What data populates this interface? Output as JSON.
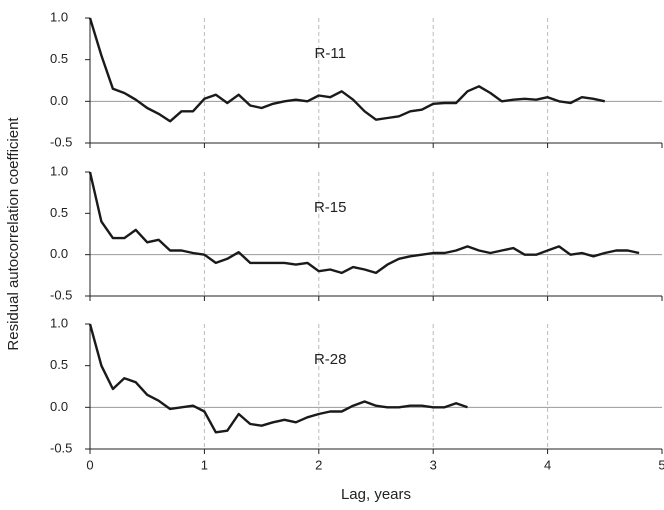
{
  "chart_data": [
    {
      "type": "line",
      "annotation": "R-11",
      "color": "#1a1a1a",
      "x": [
        0,
        0.1,
        0.2,
        0.3,
        0.4,
        0.5,
        0.6,
        0.7,
        0.8,
        0.9,
        1.0,
        1.1,
        1.2,
        1.3,
        1.4,
        1.5,
        1.6,
        1.7,
        1.8,
        1.9,
        2.0,
        2.1,
        2.2,
        2.3,
        2.4,
        2.5,
        2.6,
        2.7,
        2.8,
        2.9,
        3.0,
        3.1,
        3.2,
        3.3,
        3.4,
        3.5,
        3.6,
        3.7,
        3.8,
        3.9,
        4.0,
        4.1,
        4.2,
        4.3,
        4.4,
        4.5
      ],
      "values": [
        1.0,
        0.55,
        0.15,
        0.1,
        0.02,
        -0.08,
        -0.15,
        -0.24,
        -0.12,
        -0.12,
        0.03,
        0.08,
        -0.02,
        0.08,
        -0.05,
        -0.08,
        -0.03,
        0.0,
        0.02,
        0.0,
        0.07,
        0.05,
        0.12,
        0.02,
        -0.12,
        -0.22,
        -0.2,
        -0.18,
        -0.12,
        -0.1,
        -0.03,
        -0.02,
        -0.02,
        0.12,
        0.18,
        0.1,
        0.0,
        0.02,
        0.03,
        0.02,
        0.05,
        0.0,
        -0.02,
        0.05,
        0.03,
        0.0
      ],
      "xlim": [
        0,
        5
      ],
      "xticks": [
        0,
        1,
        2,
        3,
        4,
        5
      ],
      "xtick_labels": false,
      "ylim": [
        -0.5,
        1
      ],
      "yticks": [
        {
          "value": 1,
          "label": "1.0"
        },
        0.5,
        {
          "value": 0,
          "label": "0.0"
        },
        -0.5
      ],
      "xgrid": true,
      "zero_line": true
    },
    {
      "type": "line",
      "annotation": "R-15",
      "color": "#1a1a1a",
      "y_label": "Residual autocorrelation coefficient",
      "x": [
        0,
        0.1,
        0.2,
        0.3,
        0.4,
        0.5,
        0.6,
        0.7,
        0.8,
        0.9,
        1.0,
        1.1,
        1.2,
        1.3,
        1.4,
        1.5,
        1.6,
        1.7,
        1.8,
        1.9,
        2.0,
        2.1,
        2.2,
        2.3,
        2.4,
        2.5,
        2.6,
        2.7,
        2.8,
        2.9,
        3.0,
        3.1,
        3.2,
        3.3,
        3.4,
        3.5,
        3.6,
        3.7,
        3.8,
        3.9,
        4.0,
        4.1,
        4.2,
        4.3,
        4.4,
        4.5,
        4.6,
        4.7,
        4.8
      ],
      "values": [
        1.0,
        0.4,
        0.2,
        0.2,
        0.3,
        0.15,
        0.18,
        0.05,
        0.05,
        0.02,
        0.0,
        -0.1,
        -0.05,
        0.03,
        -0.1,
        -0.1,
        -0.1,
        -0.1,
        -0.12,
        -0.1,
        -0.2,
        -0.18,
        -0.22,
        -0.15,
        -0.18,
        -0.22,
        -0.12,
        -0.05,
        -0.02,
        0.0,
        0.02,
        0.02,
        0.05,
        0.1,
        0.05,
        0.02,
        0.05,
        0.08,
        0.0,
        0.0,
        0.05,
        0.1,
        0.0,
        0.02,
        -0.02,
        0.02,
        0.05,
        0.05,
        0.02
      ],
      "xlim": [
        0,
        5
      ],
      "xticks": [
        0,
        1,
        2,
        3,
        4,
        5
      ],
      "xtick_labels": false,
      "ylim": [
        -0.5,
        1
      ],
      "yticks": [
        {
          "value": 1,
          "label": "1.0"
        },
        0.5,
        {
          "value": 0,
          "label": "0.0"
        },
        -0.5
      ],
      "xgrid": true,
      "zero_line": true
    },
    {
      "type": "line",
      "annotation": "R-28",
      "color": "#1a1a1a",
      "x_label": "Lag, years",
      "x": [
        0,
        0.1,
        0.2,
        0.3,
        0.4,
        0.5,
        0.6,
        0.7,
        0.8,
        0.9,
        1.0,
        1.1,
        1.2,
        1.3,
        1.4,
        1.5,
        1.6,
        1.7,
        1.8,
        1.9,
        2.0,
        2.1,
        2.2,
        2.3,
        2.4,
        2.5,
        2.6,
        2.7,
        2.8,
        2.9,
        3.0,
        3.1,
        3.2,
        3.3
      ],
      "values": [
        1.0,
        0.5,
        0.22,
        0.35,
        0.3,
        0.15,
        0.08,
        -0.02,
        0.0,
        0.02,
        -0.05,
        -0.3,
        -0.28,
        -0.08,
        -0.2,
        -0.22,
        -0.18,
        -0.15,
        -0.18,
        -0.12,
        -0.08,
        -0.05,
        -0.05,
        0.02,
        0.07,
        0.02,
        0.0,
        0.0,
        0.02,
        0.02,
        0.0,
        0.0,
        0.05,
        0.0
      ],
      "xlim": [
        0,
        5
      ],
      "xticks": [
        0,
        1,
        2,
        3,
        4,
        5
      ],
      "xtick_labels": true,
      "ylim": [
        -0.5,
        1
      ],
      "yticks": [
        {
          "value": 1,
          "label": "1.0"
        },
        0.5,
        {
          "value": 0,
          "label": "0.0"
        },
        -0.5
      ],
      "xgrid": true,
      "zero_line": true
    }
  ]
}
